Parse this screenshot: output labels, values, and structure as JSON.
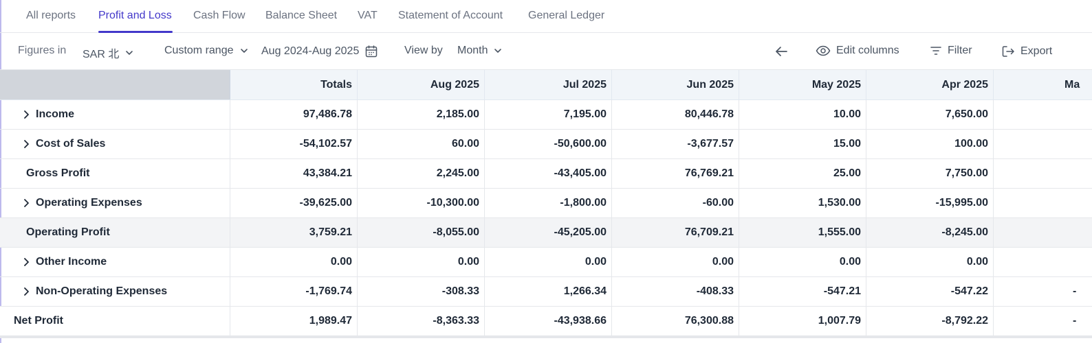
{
  "tabs": [
    {
      "label": "All reports"
    },
    {
      "label": "Profit and Loss",
      "active": true
    },
    {
      "label": "Cash Flow"
    },
    {
      "label": "Balance Sheet"
    },
    {
      "label": "VAT"
    },
    {
      "label": "Statement of Account"
    },
    {
      "label": "General Ledger"
    }
  ],
  "toolbar": {
    "figures_label": "Figures in",
    "currency": "SAR 北",
    "range_type": "Custom range",
    "date_range": "Aug 2024-Aug 2025",
    "view_by_label": "View by",
    "view_by_value": "Month",
    "back_icon": "arrow-left-icon",
    "edit_columns": "Edit columns",
    "filter": "Filter",
    "export": "Export"
  },
  "table": {
    "columns": [
      "Totals",
      "Aug 2025",
      "Jul 2025",
      "Jun 2025",
      "May 2025",
      "Apr 2025",
      "Ma"
    ],
    "rows": [
      {
        "label": "Income",
        "expandable": true,
        "values": [
          "97,486.78",
          "2,185.00",
          "7,195.00",
          "80,446.78",
          "10.00",
          "7,650.00",
          ""
        ]
      },
      {
        "label": "Cost of Sales",
        "expandable": true,
        "values": [
          "-54,102.57",
          "60.00",
          "-50,600.00",
          "-3,677.57",
          "15.00",
          "100.00",
          ""
        ]
      },
      {
        "label": "Gross Profit",
        "expandable": false,
        "values": [
          "43,384.21",
          "2,245.00",
          "-43,405.00",
          "76,769.21",
          "25.00",
          "7,750.00",
          ""
        ]
      },
      {
        "label": "Operating Expenses",
        "expandable": true,
        "values": [
          "-39,625.00",
          "-10,300.00",
          "-1,800.00",
          "-60.00",
          "1,530.00",
          "-15,995.00",
          ""
        ]
      },
      {
        "label": "Operating Profit",
        "expandable": false,
        "highlight": true,
        "values": [
          "3,759.21",
          "-8,055.00",
          "-45,205.00",
          "76,709.21",
          "1,555.00",
          "-8,245.00",
          ""
        ]
      },
      {
        "label": "Other Income",
        "expandable": true,
        "values": [
          "0.00",
          "0.00",
          "0.00",
          "0.00",
          "0.00",
          "0.00",
          ""
        ]
      },
      {
        "label": "Non-Operating Expenses",
        "expandable": true,
        "values": [
          "-1,769.74",
          "-308.33",
          "1,266.34",
          "-408.33",
          "-547.21",
          "-547.22",
          "-"
        ]
      },
      {
        "label": "Net Profit",
        "expandable": false,
        "net": true,
        "values": [
          "1,989.47",
          "-8,363.33",
          "-43,938.66",
          "76,300.88",
          "1,007.79",
          "-8,792.22",
          "-"
        ]
      }
    ]
  },
  "colors": {
    "accent": "#4338ca",
    "header_bg": "#f1f5f9",
    "label_header_bg": "#d1d5db"
  }
}
